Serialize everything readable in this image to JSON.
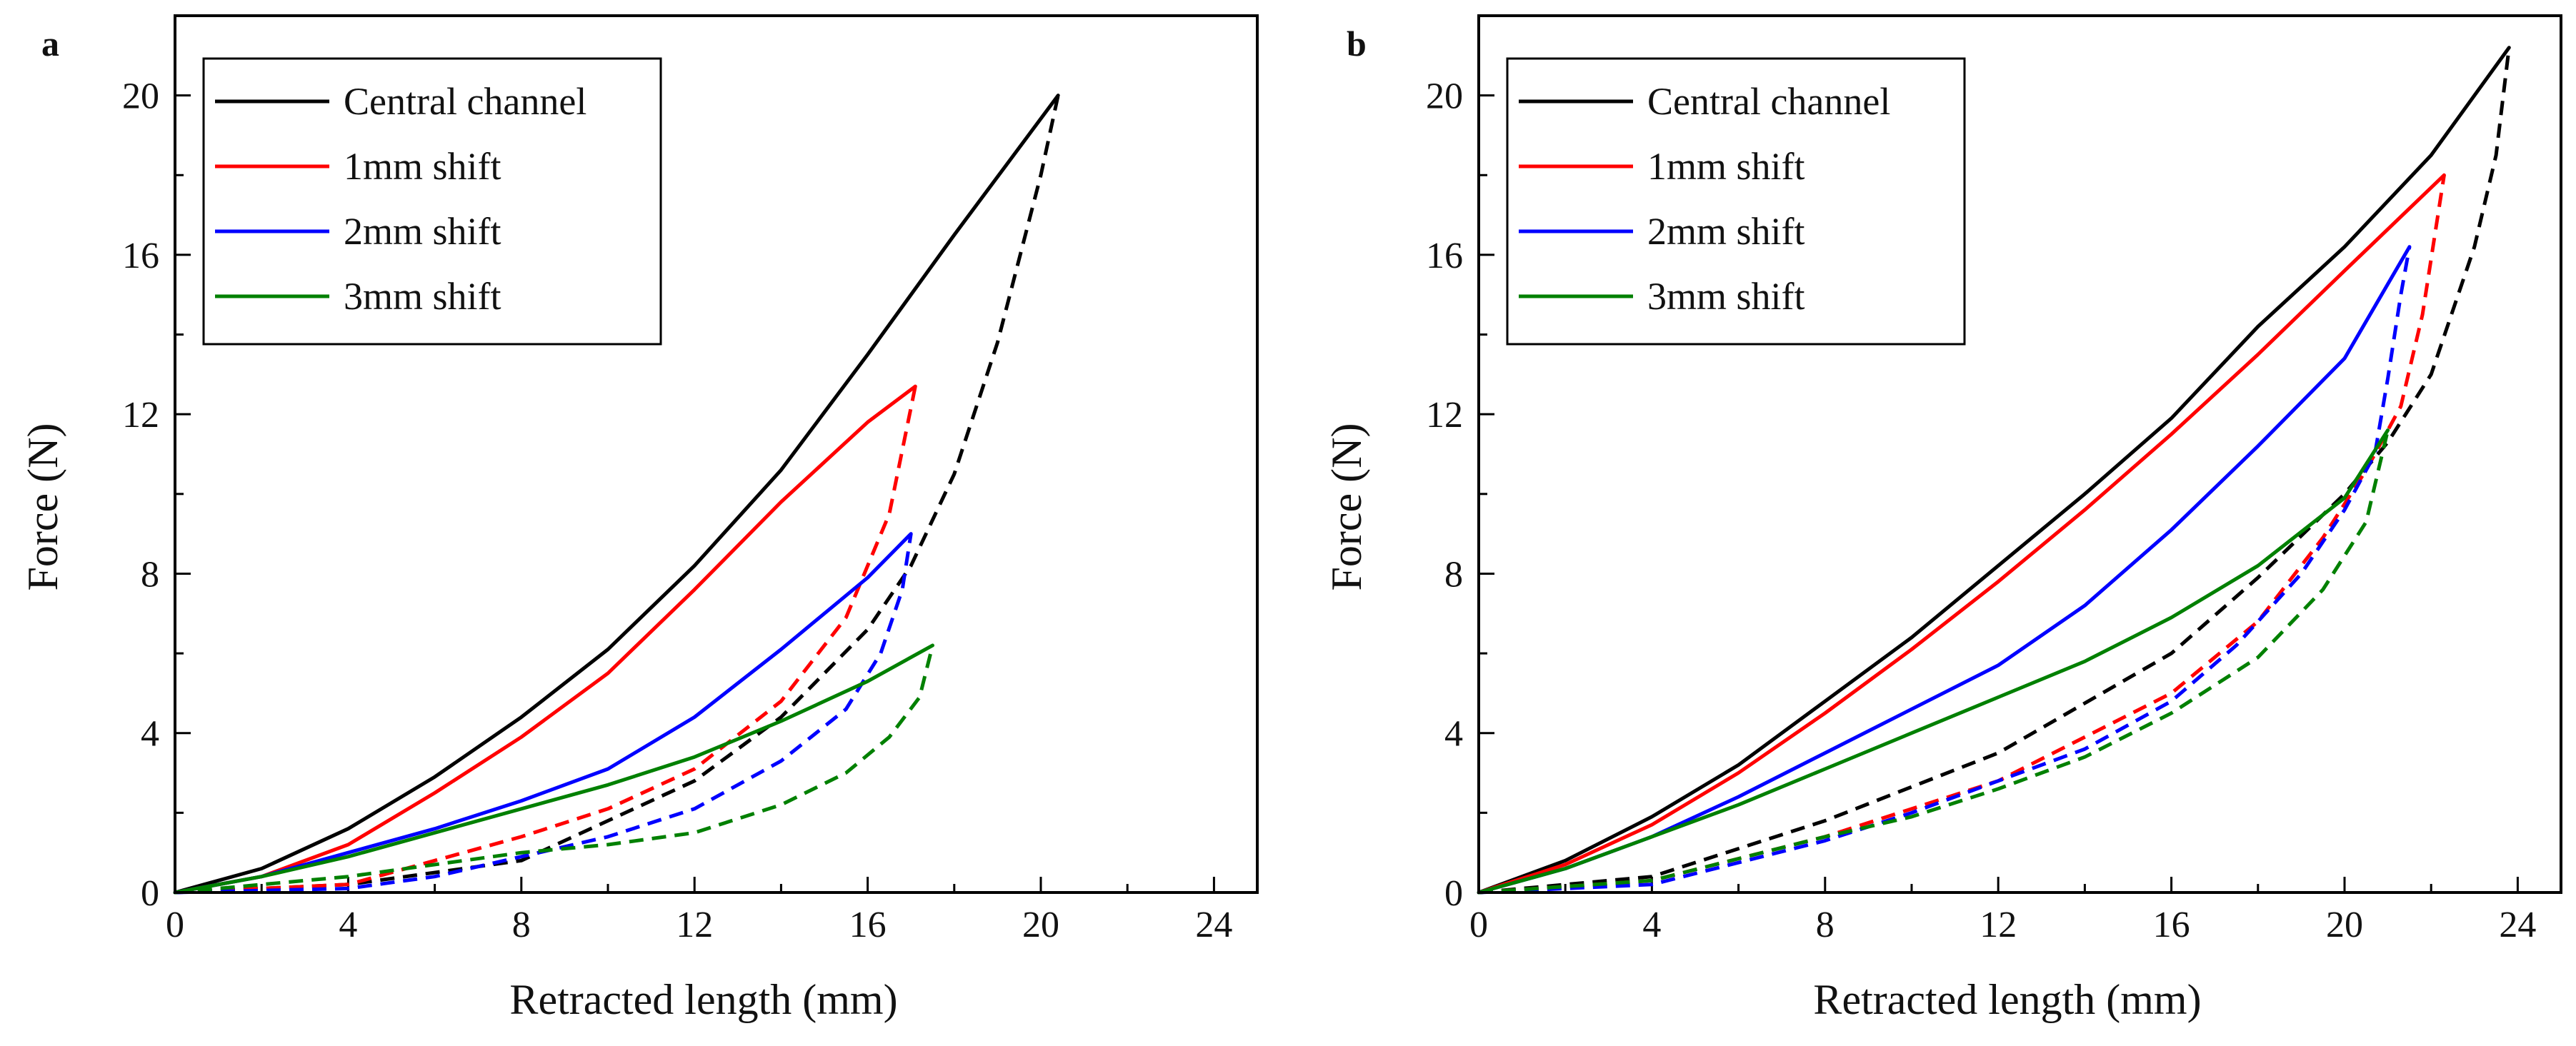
{
  "chart_data": [
    {
      "panel_label": "a",
      "type": "line",
      "xlabel": "Retracted length (mm)",
      "ylabel": "Force (N)",
      "xlim": [
        0,
        25
      ],
      "ylim": [
        0,
        22
      ],
      "xticks": [
        0,
        4,
        8,
        12,
        16,
        20,
        24
      ],
      "yticks": [
        0,
        4,
        8,
        12,
        16,
        20
      ],
      "legend_position": "top-left",
      "series": [
        {
          "name": "Central channel",
          "color": "#000000",
          "solid": [
            [
              0,
              0
            ],
            [
              2,
              0.6
            ],
            [
              4,
              1.6
            ],
            [
              6,
              2.9
            ],
            [
              8,
              4.4
            ],
            [
              10,
              6.1
            ],
            [
              12,
              8.2
            ],
            [
              14,
              10.6
            ],
            [
              16,
              13.5
            ],
            [
              18,
              16.5
            ],
            [
              20.4,
              20.0
            ]
          ],
          "dashed": [
            [
              0,
              0
            ],
            [
              4,
              0.2
            ],
            [
              8,
              0.8
            ],
            [
              12,
              2.8
            ],
            [
              14,
              4.4
            ],
            [
              16,
              6.6
            ],
            [
              17,
              8.2
            ],
            [
              18,
              10.5
            ],
            [
              19,
              13.8
            ],
            [
              20,
              18.0
            ],
            [
              20.4,
              20.0
            ]
          ]
        },
        {
          "name": "1mm shift",
          "color": "#ff0000",
          "solid": [
            [
              0,
              0
            ],
            [
              2,
              0.4
            ],
            [
              4,
              1.2
            ],
            [
              6,
              2.5
            ],
            [
              8,
              3.9
            ],
            [
              10,
              5.5
            ],
            [
              12,
              7.6
            ],
            [
              14,
              9.8
            ],
            [
              16,
              11.8
            ],
            [
              17.1,
              12.7
            ]
          ],
          "dashed": [
            [
              0,
              0
            ],
            [
              4,
              0.2
            ],
            [
              6,
              0.8
            ],
            [
              8,
              1.4
            ],
            [
              10,
              2.1
            ],
            [
              12,
              3.1
            ],
            [
              14,
              4.8
            ],
            [
              15.5,
              6.9
            ],
            [
              16.5,
              9.5
            ],
            [
              17.1,
              12.7
            ]
          ]
        },
        {
          "name": "2mm shift",
          "color": "#0000ff",
          "solid": [
            [
              0,
              0
            ],
            [
              2,
              0.4
            ],
            [
              4,
              1.0
            ],
            [
              6,
              1.6
            ],
            [
              8,
              2.3
            ],
            [
              10,
              3.1
            ],
            [
              12,
              4.4
            ],
            [
              14,
              6.1
            ],
            [
              16,
              7.9
            ],
            [
              17,
              9.0
            ]
          ],
          "dashed": [
            [
              0,
              0
            ],
            [
              4,
              0.1
            ],
            [
              6,
              0.4
            ],
            [
              8,
              0.9
            ],
            [
              10,
              1.4
            ],
            [
              12,
              2.1
            ],
            [
              14,
              3.3
            ],
            [
              15.5,
              4.6
            ],
            [
              16.3,
              6.0
            ],
            [
              16.8,
              7.6
            ],
            [
              17,
              9.0
            ]
          ]
        },
        {
          "name": "3mm shift",
          "color": "#008000",
          "solid": [
            [
              0,
              0
            ],
            [
              2,
              0.4
            ],
            [
              4,
              0.9
            ],
            [
              6,
              1.5
            ],
            [
              8,
              2.1
            ],
            [
              10,
              2.7
            ],
            [
              12,
              3.4
            ],
            [
              14,
              4.3
            ],
            [
              16,
              5.3
            ],
            [
              17.5,
              6.2
            ]
          ],
          "dashed": [
            [
              0,
              0
            ],
            [
              4,
              0.4
            ],
            [
              6,
              0.7
            ],
            [
              8,
              1.0
            ],
            [
              10,
              1.2
            ],
            [
              12,
              1.5
            ],
            [
              14,
              2.2
            ],
            [
              15.5,
              3.0
            ],
            [
              16.5,
              3.9
            ],
            [
              17.2,
              4.9
            ],
            [
              17.5,
              6.2
            ]
          ]
        }
      ]
    },
    {
      "panel_label": "b",
      "type": "line",
      "xlabel": "Retracted length (mm)",
      "ylabel": "Force (N)",
      "xlim": [
        0,
        25
      ],
      "ylim": [
        0,
        22
      ],
      "xticks": [
        0,
        4,
        8,
        12,
        16,
        20,
        24
      ],
      "yticks": [
        0,
        4,
        8,
        12,
        16,
        20
      ],
      "legend_position": "top-left",
      "series": [
        {
          "name": "Central channel",
          "color": "#000000",
          "solid": [
            [
              0,
              0
            ],
            [
              2,
              0.8
            ],
            [
              4,
              1.9
            ],
            [
              6,
              3.2
            ],
            [
              8,
              4.8
            ],
            [
              10,
              6.4
            ],
            [
              12,
              8.2
            ],
            [
              14,
              10.0
            ],
            [
              16,
              11.9
            ],
            [
              18,
              14.2
            ],
            [
              20,
              16.2
            ],
            [
              22,
              18.5
            ],
            [
              23.8,
              21.2
            ]
          ],
          "dashed": [
            [
              0,
              0
            ],
            [
              4,
              0.4
            ],
            [
              8,
              1.8
            ],
            [
              12,
              3.5
            ],
            [
              16,
              6.0
            ],
            [
              18,
              7.9
            ],
            [
              20,
              10.0
            ],
            [
              21,
              11.3
            ],
            [
              22,
              13.0
            ],
            [
              23,
              16.2
            ],
            [
              23.5,
              18.5
            ],
            [
              23.8,
              21.2
            ]
          ]
        },
        {
          "name": "1mm shift",
          "color": "#ff0000",
          "solid": [
            [
              0,
              0
            ],
            [
              2,
              0.7
            ],
            [
              4,
              1.7
            ],
            [
              6,
              3.0
            ],
            [
              8,
              4.5
            ],
            [
              10,
              6.1
            ],
            [
              12,
              7.8
            ],
            [
              14,
              9.6
            ],
            [
              16,
              11.5
            ],
            [
              18,
              13.5
            ],
            [
              20,
              15.6
            ],
            [
              22.3,
              18.0
            ]
          ],
          "dashed": [
            [
              0,
              0
            ],
            [
              4,
              0.3
            ],
            [
              8,
              1.4
            ],
            [
              12,
              2.8
            ],
            [
              16,
              5.0
            ],
            [
              18,
              6.8
            ],
            [
              19.5,
              8.9
            ],
            [
              20.5,
              10.6
            ],
            [
              21.3,
              12.2
            ],
            [
              21.8,
              14.5
            ],
            [
              22.3,
              18.0
            ]
          ]
        },
        {
          "name": "2mm shift",
          "color": "#0000ff",
          "solid": [
            [
              0,
              0
            ],
            [
              2,
              0.6
            ],
            [
              4,
              1.4
            ],
            [
              6,
              2.4
            ],
            [
              8,
              3.5
            ],
            [
              10,
              4.6
            ],
            [
              12,
              5.7
            ],
            [
              14,
              7.2
            ],
            [
              16,
              9.1
            ],
            [
              18,
              11.2
            ],
            [
              20,
              13.4
            ],
            [
              21.5,
              16.2
            ]
          ],
          "dashed": [
            [
              0,
              0
            ],
            [
              4,
              0.2
            ],
            [
              8,
              1.3
            ],
            [
              10,
              2.0
            ],
            [
              12,
              2.8
            ],
            [
              14,
              3.6
            ],
            [
              16,
              4.8
            ],
            [
              17.5,
              6.2
            ],
            [
              19,
              8.0
            ],
            [
              20,
              9.6
            ],
            [
              20.7,
              11.0
            ],
            [
              21,
              12.9
            ],
            [
              21.3,
              15.0
            ],
            [
              21.5,
              16.2
            ]
          ]
        },
        {
          "name": "3mm shift",
          "color": "#008000",
          "solid": [
            [
              0,
              0
            ],
            [
              2,
              0.6
            ],
            [
              4,
              1.4
            ],
            [
              6,
              2.2
            ],
            [
              8,
              3.1
            ],
            [
              10,
              4.0
            ],
            [
              12,
              4.9
            ],
            [
              14,
              5.8
            ],
            [
              16,
              6.9
            ],
            [
              18,
              8.2
            ],
            [
              20,
              9.9
            ],
            [
              21,
              11.6
            ]
          ],
          "dashed": [
            [
              0,
              0
            ],
            [
              4,
              0.3
            ],
            [
              8,
              1.4
            ],
            [
              10,
              1.9
            ],
            [
              12,
              2.6
            ],
            [
              14,
              3.4
            ],
            [
              16,
              4.5
            ],
            [
              18,
              5.9
            ],
            [
              19.5,
              7.6
            ],
            [
              20.5,
              9.3
            ],
            [
              21,
              11.6
            ]
          ]
        }
      ]
    }
  ]
}
